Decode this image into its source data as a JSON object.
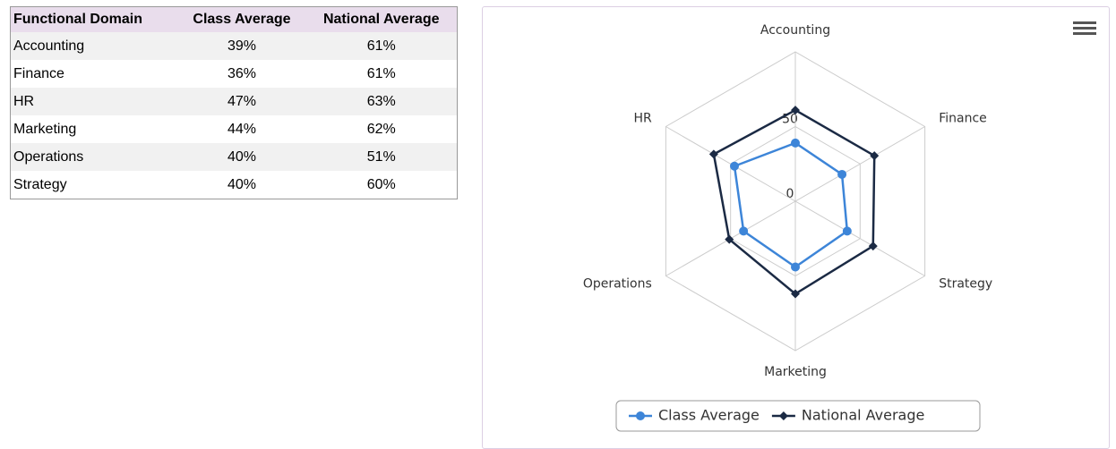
{
  "table": {
    "columns": [
      "Functional Domain",
      "Class Average",
      "National Average"
    ],
    "rows": [
      [
        "Accounting",
        "39%",
        "61%"
      ],
      [
        "Finance",
        "36%",
        "61%"
      ],
      [
        "HR",
        "47%",
        "63%"
      ],
      [
        "Marketing",
        "44%",
        "62%"
      ],
      [
        "Operations",
        "40%",
        "51%"
      ],
      [
        "Strategy",
        "40%",
        "60%"
      ]
    ]
  },
  "chart_data": {
    "type": "radar",
    "categories": [
      "Accounting",
      "Finance",
      "Strategy",
      "Marketing",
      "Operations",
      "HR"
    ],
    "series": [
      {
        "name": "Class Average",
        "color": "#3d85d8",
        "values": [
          39,
          36,
          40,
          44,
          40,
          47
        ]
      },
      {
        "name": "National Average",
        "color": "#1b2a44",
        "values": [
          61,
          61,
          60,
          62,
          51,
          63
        ]
      }
    ],
    "ylim": [
      0,
      100
    ],
    "yticks": [
      0,
      50
    ],
    "grid": true,
    "legend": "bottom"
  }
}
